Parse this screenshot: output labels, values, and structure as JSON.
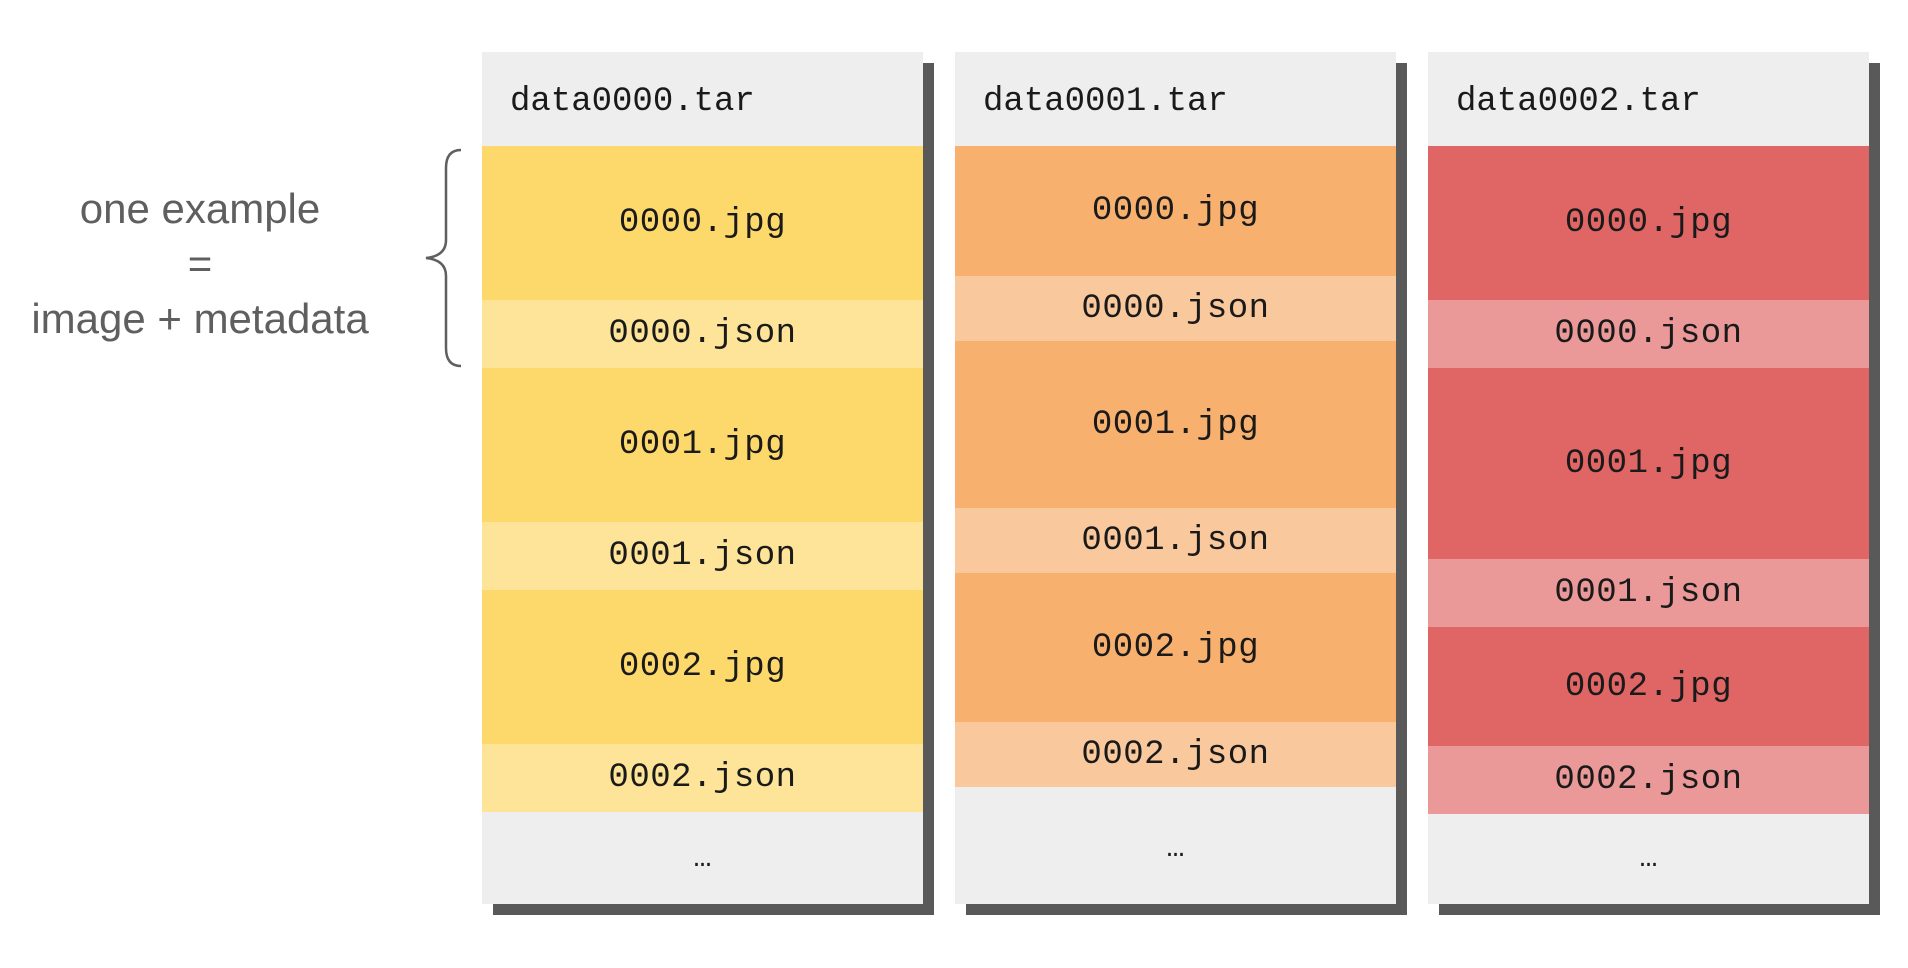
{
  "annotation": {
    "line1": "one example",
    "line2": "=",
    "line3": "image + metadata"
  },
  "archives": [
    {
      "name": "data0000.tar",
      "jpg_color": "#fdd86b",
      "json_color": "#fee498",
      "entries": [
        {
          "label": "0000.jpg",
          "kind": "jpg"
        },
        {
          "label": "0000.json",
          "kind": "json"
        },
        {
          "label": "0001.jpg",
          "kind": "jpg"
        },
        {
          "label": "0001.json",
          "kind": "json"
        },
        {
          "label": "0002.jpg",
          "kind": "jpg"
        },
        {
          "label": "0002.json",
          "kind": "json"
        }
      ],
      "more": "…"
    },
    {
      "name": "data0001.tar",
      "jpg_color": "#f7b06e",
      "json_color": "#f9c99d",
      "entries": [
        {
          "label": "0000.jpg",
          "kind": "jpg"
        },
        {
          "label": "0000.json",
          "kind": "json"
        },
        {
          "label": "0001.jpg",
          "kind": "jpg"
        },
        {
          "label": "0001.json",
          "kind": "json"
        },
        {
          "label": "0002.jpg",
          "kind": "jpg"
        },
        {
          "label": "0002.json",
          "kind": "json"
        }
      ],
      "more": "…"
    },
    {
      "name": "data0002.tar",
      "jpg_color": "#e06666",
      "json_color": "#ea9898",
      "entries": [
        {
          "label": "0000.jpg",
          "kind": "jpg"
        },
        {
          "label": "0000.json",
          "kind": "json"
        },
        {
          "label": "0001.jpg",
          "kind": "jpg"
        },
        {
          "label": "0001.json",
          "kind": "json"
        },
        {
          "label": "0002.jpg",
          "kind": "jpg"
        },
        {
          "label": "0002.json",
          "kind": "json"
        }
      ],
      "more": "…"
    }
  ]
}
